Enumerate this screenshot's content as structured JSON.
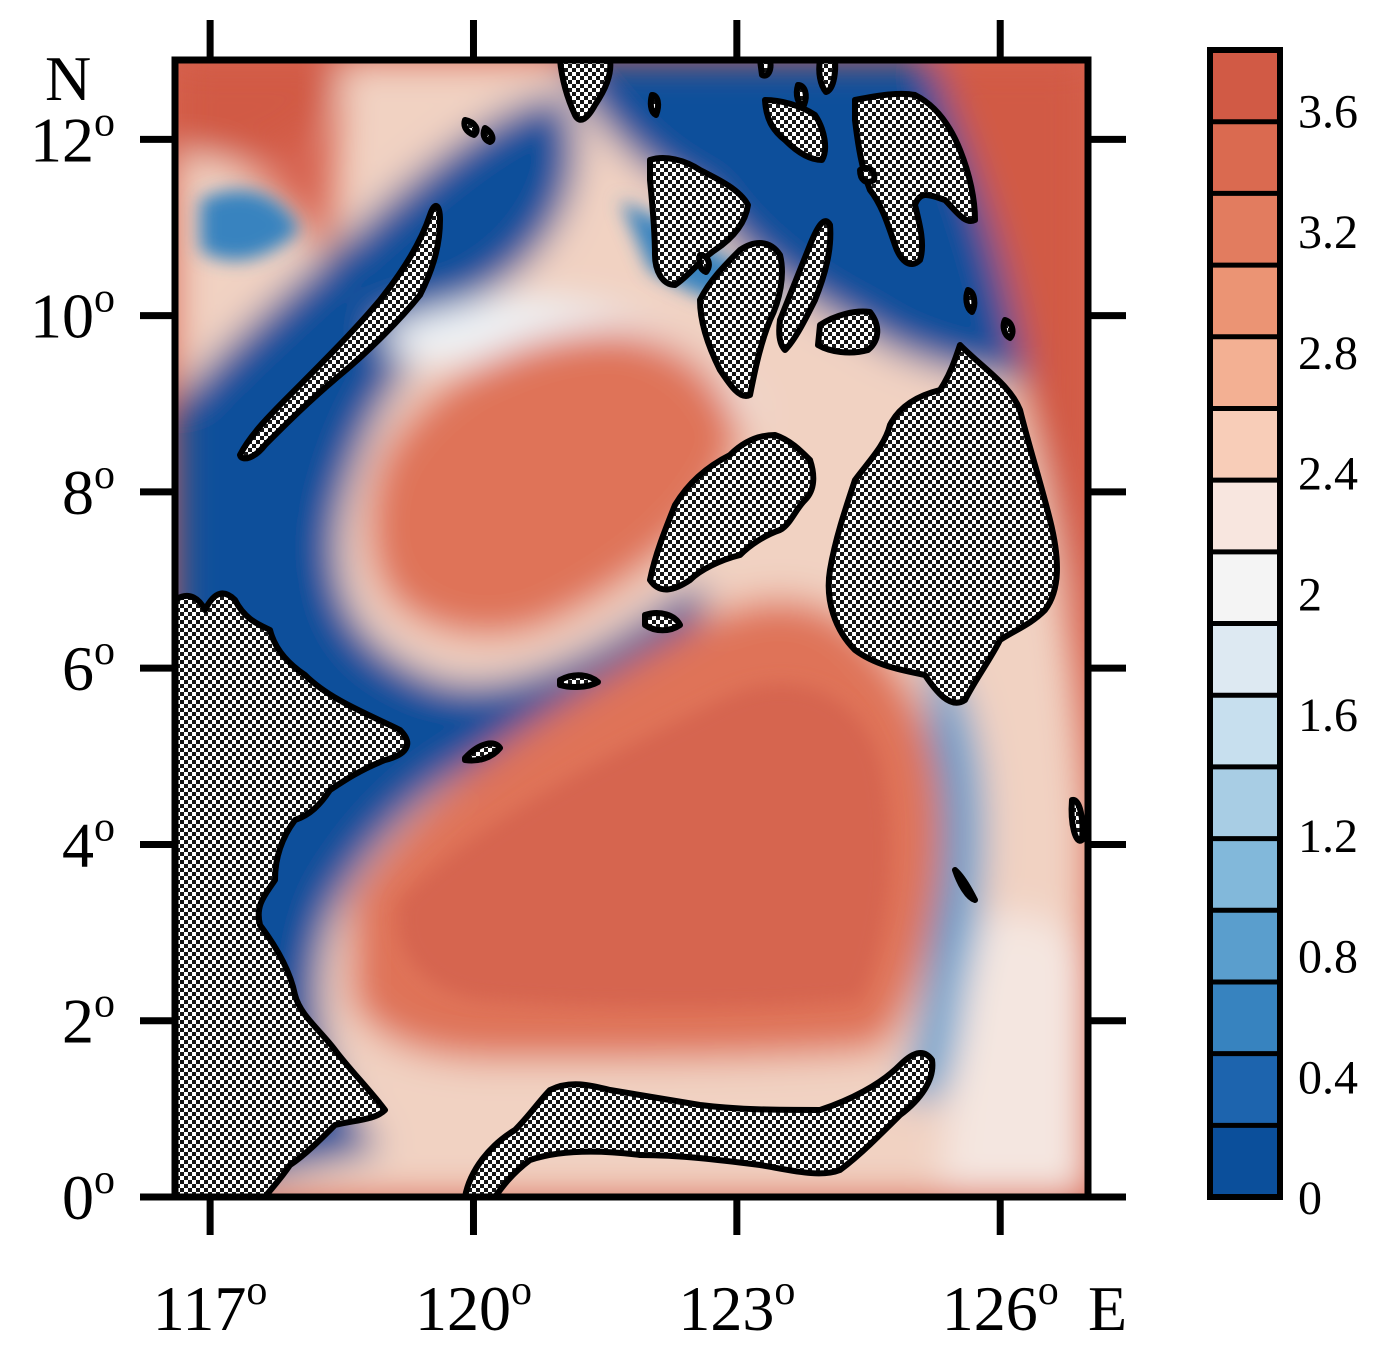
{
  "map": {
    "axes": {
      "x_ticks": [
        {
          "value": 117,
          "label": "117",
          "suffix": "o"
        },
        {
          "value": 120,
          "label": "120",
          "suffix": "o"
        },
        {
          "value": 123,
          "label": "123",
          "suffix": "o"
        },
        {
          "value": 126,
          "label": "126",
          "suffix": "o"
        }
      ],
      "x_unit": "E",
      "y_ticks": [
        {
          "value": 0,
          "label": "0",
          "suffix": "o"
        },
        {
          "value": 2,
          "label": "2",
          "suffix": "o"
        },
        {
          "value": 4,
          "label": "4",
          "suffix": "o"
        },
        {
          "value": 6,
          "label": "6",
          "suffix": "o"
        },
        {
          "value": 8,
          "label": "8",
          "suffix": "o"
        },
        {
          "value": 10,
          "label": "10",
          "suffix": "o"
        },
        {
          "value": 12,
          "label": "12",
          "suffix": "o"
        }
      ],
      "y_unit": "N",
      "lon_range": [
        116.6,
        127.0
      ],
      "lat_range": [
        0,
        12.9
      ]
    },
    "colorbar": {
      "labels": [
        "0",
        "0.4",
        "0.8",
        "1.2",
        "1.6",
        "2",
        "2.4",
        "2.8",
        "3.2",
        "3.6"
      ],
      "range": [
        0,
        3.8
      ],
      "step": 0.2,
      "colors": [
        "#0b4f9b",
        "#1d64ae",
        "#3783bf",
        "#5a9ecd",
        "#82b8da",
        "#a8cde4",
        "#c7dfee",
        "#dde9f2",
        "#f4f4f4",
        "#f8e6df",
        "#f8cdb8",
        "#f3b093",
        "#eb9474",
        "#e27c5f",
        "#da6a50",
        "#d15a45"
      ]
    },
    "colors": {
      "land_dark": "#161616",
      "land_light": "#ffffff",
      "coastline": "#000000"
    }
  }
}
